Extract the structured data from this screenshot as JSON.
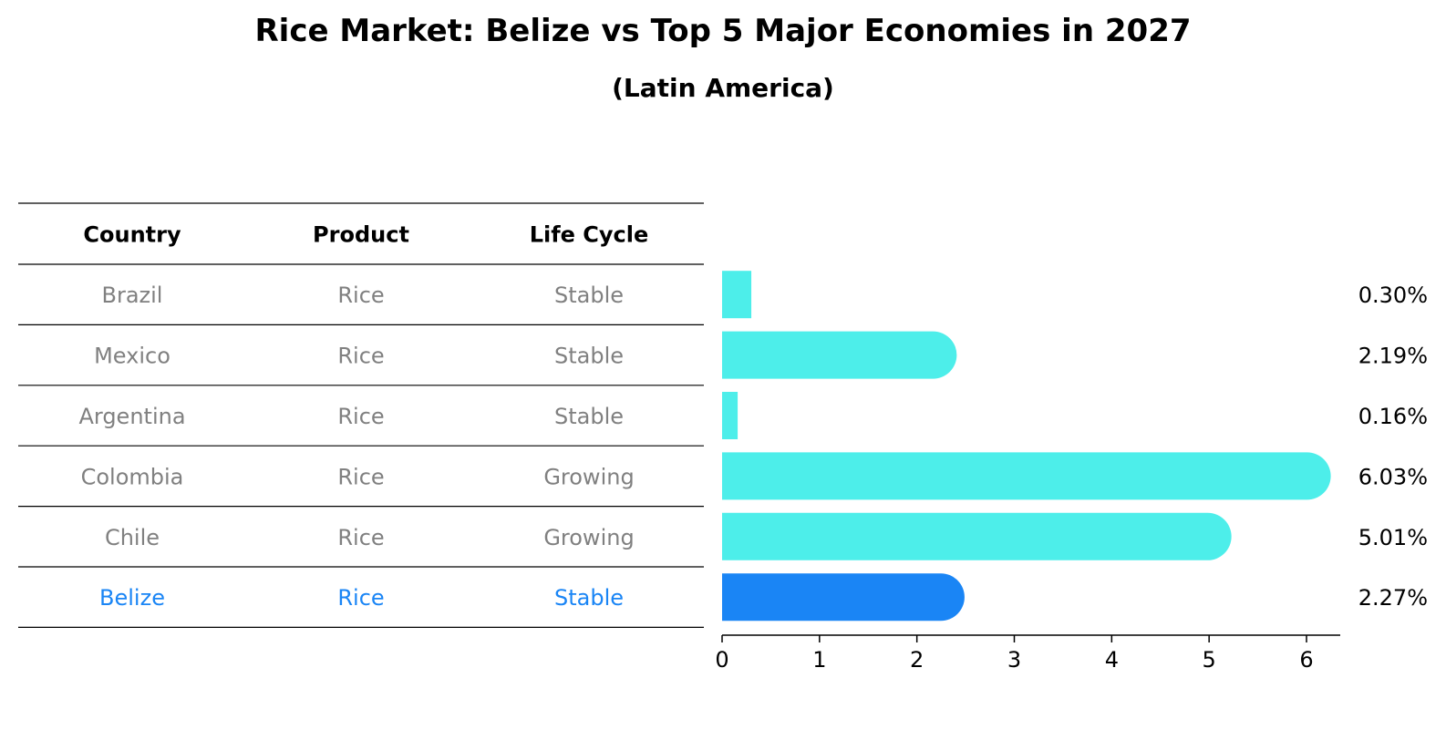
{
  "title": "Rice Market: Belize vs Top 5 Major Economies in 2027",
  "subtitle": "(Latin America)",
  "table": {
    "headers": [
      "Country",
      "Product",
      "Life Cycle"
    ],
    "rows": [
      {
        "country": "Brazil",
        "product": "Rice",
        "life_cycle": "Stable",
        "highlight": false
      },
      {
        "country": "Mexico",
        "product": "Rice",
        "life_cycle": "Stable",
        "highlight": false
      },
      {
        "country": "Argentina",
        "product": "Rice",
        "life_cycle": "Stable",
        "highlight": false
      },
      {
        "country": "Colombia",
        "product": "Rice",
        "life_cycle": "Growing",
        "highlight": false
      },
      {
        "country": "Chile",
        "product": "Rice",
        "life_cycle": "Growing",
        "highlight": false
      },
      {
        "country": "Belize",
        "product": "Rice",
        "life_cycle": "Stable",
        "highlight": true
      }
    ]
  },
  "colors": {
    "bar": "#4deeea",
    "highlight_bar": "#1a85f5",
    "muted_text": "#808080",
    "highlight_text": "#1a85f5"
  },
  "chart_data": {
    "type": "bar",
    "orientation": "horizontal",
    "categories": [
      "Brazil",
      "Mexico",
      "Argentina",
      "Colombia",
      "Chile",
      "Belize"
    ],
    "values": [
      0.3,
      2.19,
      0.16,
      6.03,
      5.01,
      2.27
    ],
    "value_labels": [
      "0.30%",
      "2.19%",
      "0.16%",
      "6.03%",
      "5.01%",
      "2.27%"
    ],
    "xlim": [
      0,
      6.35
    ],
    "xticks": [
      0,
      1,
      2,
      3,
      4,
      5,
      6
    ],
    "xlabel": "",
    "ylabel": "",
    "grid": false,
    "legend": "none"
  }
}
